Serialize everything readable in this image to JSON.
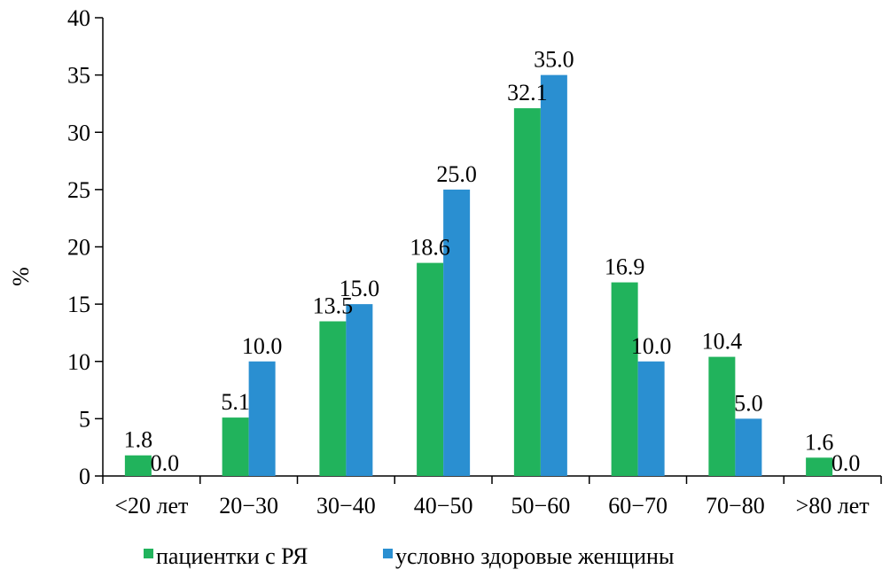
{
  "chart_data": {
    "type": "bar",
    "ylabel": "%",
    "ylim": [
      0,
      40
    ],
    "yticks": [
      0,
      5,
      10,
      15,
      20,
      25,
      30,
      35,
      40
    ],
    "categories": [
      "<20 лет",
      "20−30",
      "30−40",
      "40−50",
      "50−60",
      "60−70",
      "70−80",
      ">80 лет"
    ],
    "series": [
      {
        "name": "пациентки с РЯ",
        "color": "#21b35c",
        "values": [
          1.8,
          5.1,
          13.5,
          18.6,
          32.1,
          16.9,
          10.4,
          1.6
        ]
      },
      {
        "name": "условно здоровые женщины",
        "color": "#2a8fd1",
        "values": [
          0.0,
          10.0,
          15.0,
          25.0,
          35.0,
          10.0,
          5.0,
          0.0
        ]
      }
    ],
    "data_labels": [
      [
        "1.8",
        "5.1",
        "13.5",
        "18.6",
        "32.1",
        "16.9",
        "10.4",
        "1.6"
      ],
      [
        "0.0",
        "10.0",
        "15.0",
        "25.0",
        "35.0",
        "10.0",
        "5.0",
        "0.0"
      ]
    ],
    "legend": "bottom",
    "grid": false
  }
}
